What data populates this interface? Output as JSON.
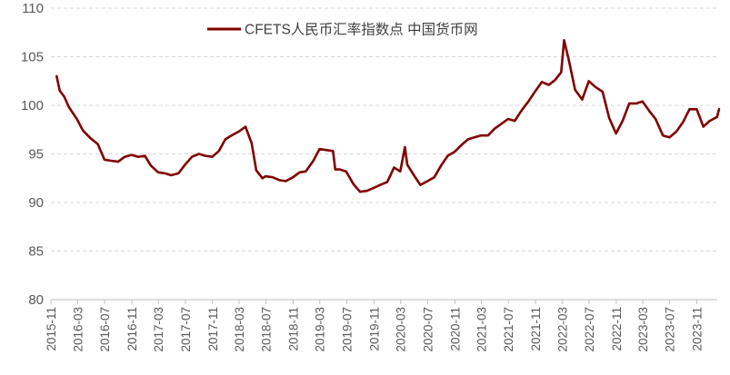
{
  "chart_data": {
    "type": "line",
    "title": "",
    "xlabel": "",
    "ylabel": "",
    "ylim": [
      80,
      110
    ],
    "yticks": [
      80,
      85,
      90,
      95,
      100,
      105,
      110
    ],
    "ytick_labels": [
      "80",
      "85",
      "90",
      "95",
      "100",
      "105",
      "110"
    ],
    "xlim": [
      "2015-11",
      "2024-02"
    ],
    "xtick_labels": [
      "2015-11",
      "2016-03",
      "2016-07",
      "2016-11",
      "2017-03",
      "2017-07",
      "2017-11",
      "2018-03",
      "2018-07",
      "2018-11",
      "2019-03",
      "2019-07",
      "2019-11",
      "2020-03",
      "2020-07",
      "2020-11",
      "2021-03",
      "2021-07",
      "2021-11",
      "2022-03",
      "2022-07",
      "2022-11",
      "2023-03",
      "2023-07",
      "2023-11"
    ],
    "grid": "horizontal-dashed",
    "legend_position": "top-center",
    "series": [
      {
        "name": "CFETS人民币汇率指数点 中国货币网",
        "color": "#800000",
        "x": [
          "2015-11-27",
          "2015-12-11",
          "2015-12-31",
          "2016-01-22",
          "2016-02-26",
          "2016-03-25",
          "2016-04-29",
          "2016-05-31",
          "2016-06-30",
          "2016-07-29",
          "2016-08-31",
          "2016-09-30",
          "2016-10-31",
          "2016-11-30",
          "2016-12-30",
          "2017-01-26",
          "2017-02-28",
          "2017-03-31",
          "2017-04-28",
          "2017-05-31",
          "2017-06-30",
          "2017-07-31",
          "2017-08-31",
          "2017-09-29",
          "2017-10-31",
          "2017-11-30",
          "2017-12-29",
          "2018-01-26",
          "2018-02-28",
          "2018-03-30",
          "2018-04-27",
          "2018-05-18",
          "2018-06-15",
          "2018-06-29",
          "2018-07-31",
          "2018-08-31",
          "2018-09-28",
          "2018-10-31",
          "2018-11-30",
          "2018-12-28",
          "2019-01-31",
          "2019-02-28",
          "2019-03-29",
          "2019-04-30",
          "2019-05-10",
          "2019-05-31",
          "2019-06-28",
          "2019-07-31",
          "2019-08-30",
          "2019-09-30",
          "2019-10-31",
          "2019-11-29",
          "2019-12-31",
          "2020-01-17",
          "2020-01-31",
          "2020-02-28",
          "2020-03-20",
          "2020-03-31",
          "2020-04-30",
          "2020-05-29",
          "2020-06-30",
          "2020-07-31",
          "2020-08-31",
          "2020-09-30",
          "2020-10-30",
          "2020-11-30",
          "2020-12-31",
          "2021-01-29",
          "2021-02-26",
          "2021-03-31",
          "2021-04-30",
          "2021-05-31",
          "2021-06-30",
          "2021-07-30",
          "2021-08-31",
          "2021-09-30",
          "2021-10-29",
          "2021-11-30",
          "2021-12-31",
          "2022-01-28",
          "2022-02-25",
          "2022-03-10",
          "2022-03-31",
          "2022-04-29",
          "2022-05-31",
          "2022-06-30",
          "2022-07-29",
          "2022-08-31",
          "2022-09-30",
          "2022-10-31",
          "2022-11-30",
          "2022-12-30",
          "2023-01-31",
          "2023-02-28",
          "2023-03-31",
          "2023-04-28",
          "2023-05-31",
          "2023-06-30",
          "2023-07-31",
          "2023-08-31",
          "2023-09-28",
          "2023-10-31",
          "2023-11-30",
          "2023-12-29",
          "2024-01-31",
          "2024-02-09"
        ],
        "y": [
          103.0,
          101.5,
          100.9,
          99.8,
          98.6,
          97.4,
          96.6,
          96.0,
          94.4,
          94.3,
          94.2,
          94.7,
          94.9,
          94.7,
          94.8,
          93.8,
          93.1,
          93.0,
          92.8,
          93.0,
          93.9,
          94.7,
          95.0,
          94.8,
          94.7,
          95.3,
          96.5,
          96.9,
          97.3,
          97.8,
          96.1,
          93.3,
          92.5,
          92.7,
          92.6,
          92.3,
          92.2,
          92.6,
          93.1,
          93.2,
          94.3,
          95.5,
          95.4,
          95.3,
          93.4,
          93.4,
          93.2,
          91.9,
          91.1,
          91.2,
          91.5,
          91.8,
          92.1,
          92.9,
          93.6,
          93.2,
          95.7,
          93.9,
          92.8,
          91.8,
          92.2,
          92.6,
          93.8,
          94.8,
          95.2,
          95.9,
          96.5,
          96.7,
          96.9,
          96.9,
          97.6,
          98.1,
          98.6,
          98.4,
          99.5,
          100.4,
          101.4,
          102.4,
          102.1,
          102.6,
          103.4,
          106.7,
          104.7,
          101.6,
          100.6,
          102.5,
          101.9,
          101.4,
          98.7,
          97.1,
          98.4,
          100.2,
          100.2,
          100.4,
          99.4,
          98.6,
          96.9,
          96.7,
          97.3,
          98.3,
          99.6,
          99.6,
          97.8,
          98.4,
          98.8,
          99.6
        ]
      }
    ]
  }
}
